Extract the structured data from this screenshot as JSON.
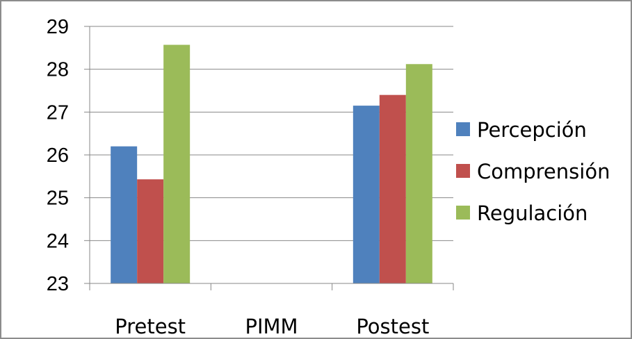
{
  "chart_data": {
    "type": "bar",
    "title": "",
    "xlabel": "",
    "ylabel": "",
    "categories": [
      "Pretest",
      "PIMM",
      "Postest"
    ],
    "series": [
      {
        "name": "Percepción",
        "color": "#4f81bd",
        "values": [
          26.2,
          null,
          27.15
        ]
      },
      {
        "name": "Comprensión",
        "color": "#c0504d",
        "values": [
          25.43,
          null,
          27.4
        ]
      },
      {
        "name": "Regulación",
        "color": "#9bbb59",
        "values": [
          28.57,
          null,
          28.12
        ]
      }
    ],
    "ylim": [
      23,
      29
    ],
    "yticks": [
      23,
      24,
      25,
      26,
      27,
      28,
      29
    ],
    "grid": true,
    "legend_position": "right"
  }
}
